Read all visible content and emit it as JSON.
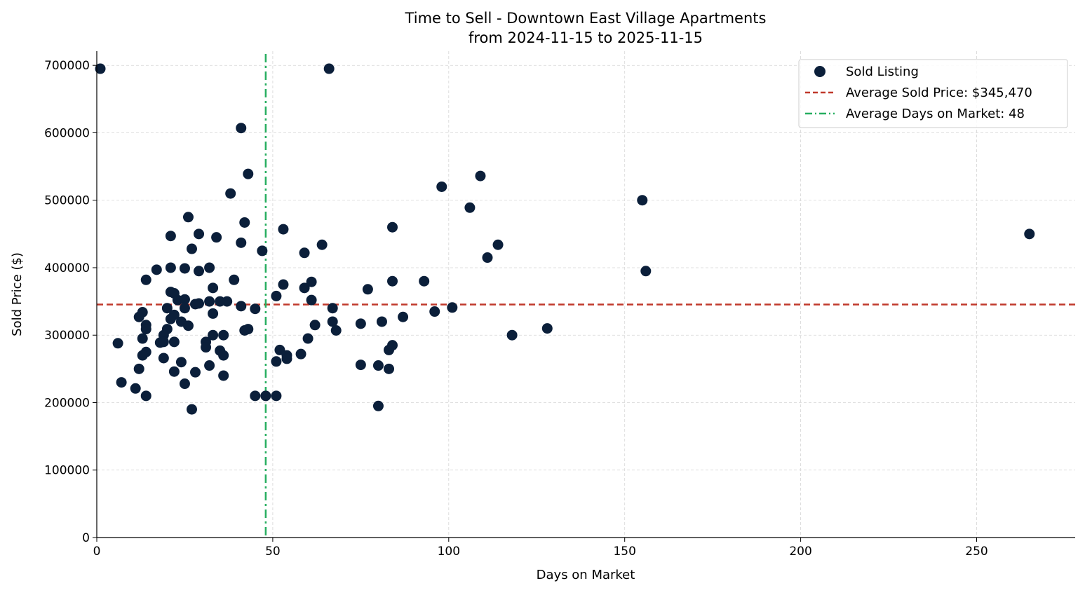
{
  "chart_data": {
    "type": "scatter",
    "title": "Time to Sell - Downtown East Village Apartments",
    "subtitle": "from 2024-11-15 to 2025-11-15",
    "xlabel": "Days on Market",
    "ylabel": "Sold Price ($)",
    "xlim": [
      0,
      278
    ],
    "ylim": [
      0,
      721000
    ],
    "xticks": [
      0,
      50,
      100,
      150,
      200,
      250
    ],
    "yticks": [
      0,
      100000,
      200000,
      300000,
      400000,
      500000,
      600000,
      700000
    ],
    "grid": true,
    "legend_position": "top-right",
    "colors": {
      "points": "#0b1f3a",
      "avg_price": "#c0392b",
      "avg_days": "#27ae60"
    },
    "series": [
      {
        "name": "Sold Listing",
        "points": [
          [
            1,
            695000
          ],
          [
            66,
            695000
          ],
          [
            41,
            607000
          ],
          [
            43,
            539000
          ],
          [
            38,
            510000
          ],
          [
            42,
            467000
          ],
          [
            26,
            475000
          ],
          [
            21,
            447000
          ],
          [
            29,
            450000
          ],
          [
            34,
            445000
          ],
          [
            41,
            437000
          ],
          [
            27,
            428000
          ],
          [
            47,
            425000
          ],
          [
            17,
            397000
          ],
          [
            21,
            400000
          ],
          [
            25,
            399000
          ],
          [
            29,
            395000
          ],
          [
            32,
            400000
          ],
          [
            14,
            382000
          ],
          [
            39,
            382000
          ],
          [
            33,
            370000
          ],
          [
            21,
            364000
          ],
          [
            22,
            362000
          ],
          [
            23,
            352000
          ],
          [
            25,
            353000
          ],
          [
            32,
            350000
          ],
          [
            35,
            350000
          ],
          [
            37,
            350000
          ],
          [
            41,
            343000
          ],
          [
            20,
            340000
          ],
          [
            25,
            340000
          ],
          [
            28,
            346000
          ],
          [
            29,
            347000
          ],
          [
            45,
            339000
          ],
          [
            13,
            334000
          ],
          [
            12,
            327000
          ],
          [
            22,
            330000
          ],
          [
            33,
            332000
          ],
          [
            21,
            324000
          ],
          [
            24,
            320000
          ],
          [
            14,
            315000
          ],
          [
            14,
            309000
          ],
          [
            20,
            309000
          ],
          [
            26,
            314000
          ],
          [
            42,
            307000
          ],
          [
            43,
            309000
          ],
          [
            19,
            300000
          ],
          [
            33,
            300000
          ],
          [
            36,
            300000
          ],
          [
            13,
            295000
          ],
          [
            6,
            288000
          ],
          [
            18,
            289000
          ],
          [
            19,
            290000
          ],
          [
            22,
            290000
          ],
          [
            31,
            290000
          ],
          [
            31,
            282000
          ],
          [
            35,
            277000
          ],
          [
            14,
            275000
          ],
          [
            13,
            270000
          ],
          [
            36,
            270000
          ],
          [
            19,
            266000
          ],
          [
            24,
            260000
          ],
          [
            32,
            255000
          ],
          [
            12,
            250000
          ],
          [
            22,
            246000
          ],
          [
            28,
            245000
          ],
          [
            36,
            240000
          ],
          [
            7,
            230000
          ],
          [
            25,
            228000
          ],
          [
            11,
            221000
          ],
          [
            14,
            210000
          ],
          [
            27,
            190000
          ],
          [
            45,
            210000
          ],
          [
            48,
            210000
          ],
          [
            51,
            210000
          ],
          [
            53,
            457000
          ],
          [
            64,
            434000
          ],
          [
            59,
            422000
          ],
          [
            53,
            375000
          ],
          [
            61,
            379000
          ],
          [
            59,
            370000
          ],
          [
            51,
            358000
          ],
          [
            61,
            352000
          ],
          [
            67,
            340000
          ],
          [
            67,
            320000
          ],
          [
            62,
            315000
          ],
          [
            68,
            307000
          ],
          [
            60,
            295000
          ],
          [
            52,
            278000
          ],
          [
            54,
            270000
          ],
          [
            54,
            265000
          ],
          [
            51,
            261000
          ],
          [
            58,
            272000
          ],
          [
            77,
            368000
          ],
          [
            75,
            317000
          ],
          [
            81,
            320000
          ],
          [
            75,
            256000
          ],
          [
            80,
            255000
          ],
          [
            83,
            250000
          ],
          [
            83,
            278000
          ],
          [
            84,
            285000
          ],
          [
            80,
            195000
          ],
          [
            84,
            380000
          ],
          [
            84,
            460000
          ],
          [
            87,
            327000
          ],
          [
            93,
            380000
          ],
          [
            96,
            335000
          ],
          [
            101,
            341000
          ],
          [
            98,
            520000
          ],
          [
            109,
            536000
          ],
          [
            106,
            489000
          ],
          [
            114,
            434000
          ],
          [
            111,
            415000
          ],
          [
            118,
            300000
          ],
          [
            128,
            310000
          ],
          [
            155,
            500000
          ],
          [
            156,
            395000
          ],
          [
            265,
            450000
          ]
        ]
      },
      {
        "name": "Average Sold Price: $345,470",
        "type": "hline",
        "value": 345470
      },
      {
        "name": "Average Days on Market: 48",
        "type": "vline",
        "value": 48
      }
    ]
  }
}
